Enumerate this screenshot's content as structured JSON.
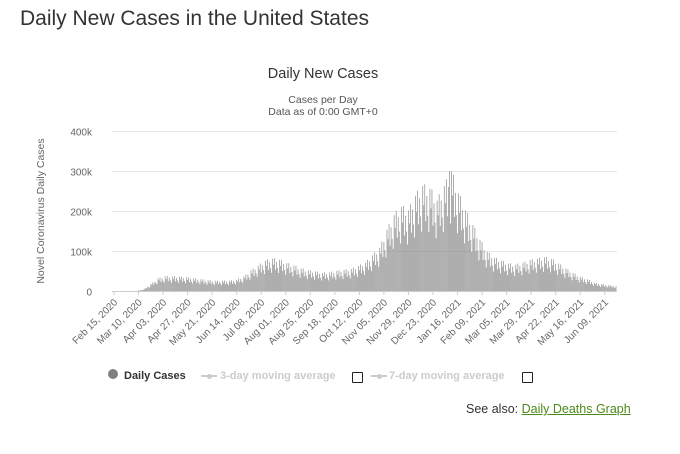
{
  "page": {
    "heading": "Daily New Cases in the United States",
    "see_also_prefix": "See also:",
    "see_also_link": "Daily Deaths Graph",
    "link_color": "#4c8a1a"
  },
  "legend": [
    {
      "label": "Daily Cases",
      "marker": "circle",
      "color": "#7f7f7f",
      "text_color": "#333333",
      "has_checkbox": false
    },
    {
      "label": "3-day moving average",
      "marker": "line-dot",
      "color": "#cccccc",
      "text_color": "#cccccc",
      "has_checkbox": true
    },
    {
      "label": "7-day moving average",
      "marker": "line-dot",
      "color": "#cccccc",
      "text_color": "#cccccc",
      "has_checkbox": true
    }
  ],
  "chart_data": {
    "type": "bar",
    "title": "Daily New Cases",
    "subtitle_lines": [
      "Cases per Day",
      "Data as of 0:00 GMT+0"
    ],
    "ylabel": "Novel Coronavirus Daily Cases",
    "xlabel": "",
    "ylim": [
      0,
      400000
    ],
    "y_ticks": [
      0,
      100000,
      200000,
      300000,
      400000
    ],
    "y_tick_labels": [
      "0",
      "100k",
      "200k",
      "300k",
      "400k"
    ],
    "x_start": "2020-02-15",
    "x_end": "2021-06-20",
    "x_tick_labels": [
      "Feb 15, 2020",
      "Mar 10, 2020",
      "Apr 03, 2020",
      "Apr 27, 2020",
      "May 21, 2020",
      "Jun 14, 2020",
      "Jul 08, 2020",
      "Aug 01, 2020",
      "Aug 25, 2020",
      "Sep 18, 2020",
      "Oct 12, 2020",
      "Nov 05, 2020",
      "Nov 29, 2020",
      "Dec 23, 2020",
      "Jan 16, 2021",
      "Feb 09, 2021",
      "Mar 05, 2021",
      "Mar 29, 2021",
      "Apr 22, 2021",
      "May 16, 2021",
      "Jun 09, 2021"
    ],
    "grid": true,
    "bar_color": "#7f7f7f",
    "series": [
      {
        "name": "Daily Cases",
        "weekly_average_points": [
          [
            "2020-02-15",
            0
          ],
          [
            "2020-03-08",
            0
          ],
          [
            "2020-03-15",
            3000
          ],
          [
            "2020-03-22",
            14000
          ],
          [
            "2020-03-29",
            26000
          ],
          [
            "2020-04-05",
            30000
          ],
          [
            "2020-04-12",
            30000
          ],
          [
            "2020-04-19",
            29000
          ],
          [
            "2020-04-26",
            28000
          ],
          [
            "2020-05-03",
            26000
          ],
          [
            "2020-05-10",
            24000
          ],
          [
            "2020-05-17",
            22000
          ],
          [
            "2020-05-24",
            21000
          ],
          [
            "2020-05-31",
            21000
          ],
          [
            "2020-06-07",
            21000
          ],
          [
            "2020-06-14",
            23000
          ],
          [
            "2020-06-21",
            30000
          ],
          [
            "2020-06-28",
            42000
          ],
          [
            "2020-07-05",
            52000
          ],
          [
            "2020-07-12",
            62000
          ],
          [
            "2020-07-19",
            66000
          ],
          [
            "2020-07-26",
            64000
          ],
          [
            "2020-08-02",
            57000
          ],
          [
            "2020-08-09",
            52000
          ],
          [
            "2020-08-16",
            46000
          ],
          [
            "2020-08-23",
            42000
          ],
          [
            "2020-08-30",
            40000
          ],
          [
            "2020-09-06",
            37000
          ],
          [
            "2020-09-13",
            38000
          ],
          [
            "2020-09-20",
            41000
          ],
          [
            "2020-09-27",
            43000
          ],
          [
            "2020-10-04",
            45000
          ],
          [
            "2020-10-11",
            51000
          ],
          [
            "2020-10-18",
            58000
          ],
          [
            "2020-10-25",
            73000
          ],
          [
            "2020-11-01",
            88000
          ],
          [
            "2020-11-08",
            125000
          ],
          [
            "2020-11-15",
            155000
          ],
          [
            "2020-11-22",
            172000
          ],
          [
            "2020-11-29",
            165000
          ],
          [
            "2020-12-06",
            195000
          ],
          [
            "2020-12-13",
            215000
          ],
          [
            "2020-12-20",
            210000
          ],
          [
            "2020-12-27",
            185000
          ],
          [
            "2021-01-03",
            215000
          ],
          [
            "2021-01-10",
            245000
          ],
          [
            "2021-01-17",
            200000
          ],
          [
            "2021-01-24",
            165000
          ],
          [
            "2021-01-31",
            135000
          ],
          [
            "2021-02-07",
            105000
          ],
          [
            "2021-02-14",
            80000
          ],
          [
            "2021-02-21",
            68000
          ],
          [
            "2021-02-28",
            62000
          ],
          [
            "2021-03-07",
            56000
          ],
          [
            "2021-03-14",
            54000
          ],
          [
            "2021-03-21",
            57000
          ],
          [
            "2021-03-28",
            63000
          ],
          [
            "2021-04-04",
            66000
          ],
          [
            "2021-04-11",
            69000
          ],
          [
            "2021-04-18",
            66000
          ],
          [
            "2021-04-25",
            56000
          ],
          [
            "2021-05-02",
            46000
          ],
          [
            "2021-05-09",
            37000
          ],
          [
            "2021-05-16",
            29000
          ],
          [
            "2021-05-23",
            24000
          ],
          [
            "2021-05-30",
            17000
          ],
          [
            "2021-06-06",
            14000
          ],
          [
            "2021-06-13",
            12000
          ],
          [
            "2021-06-20",
            10000
          ]
        ],
        "peak": [
          "2021-01-08",
          300000
        ]
      }
    ]
  }
}
